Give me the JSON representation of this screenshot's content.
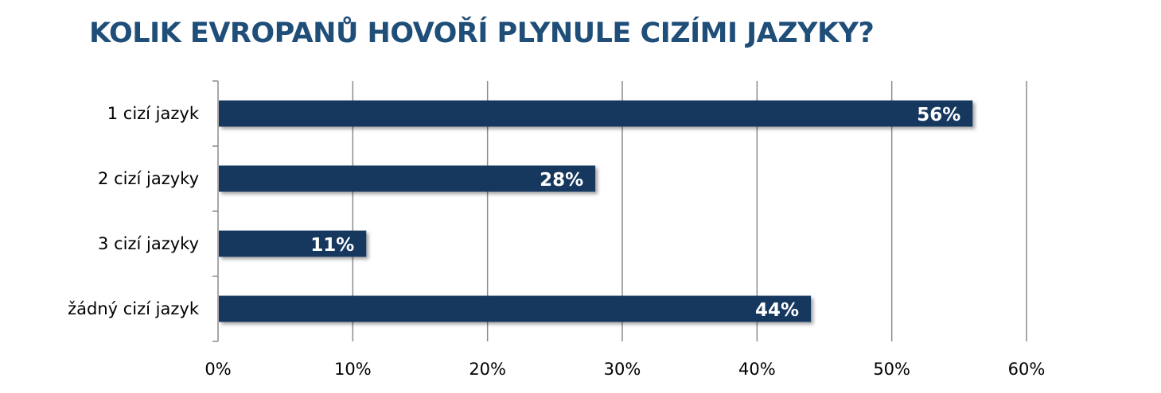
{
  "chart_data": {
    "type": "bar",
    "orientation": "horizontal",
    "title": "KOLIK EVROPANŮ HOVOŘÍ PLYNULE CIZÍMI JAZYKY?",
    "categories": [
      "1 cizí jazyk",
      "2 cizí jazyky",
      "3 cizí jazyky",
      "žádný cizí jazyk"
    ],
    "values": [
      56,
      28,
      11,
      44
    ],
    "data_labels": [
      "56%",
      "28%",
      "11%",
      "44%"
    ],
    "x_ticks": [
      "0%",
      "10%",
      "20%",
      "30%",
      "40%",
      "50%",
      "60%"
    ],
    "xlim": [
      0,
      60
    ],
    "grid": "vertical",
    "legend": "none",
    "colors": {
      "bar": "#17375e",
      "grid": "#8c8c8c",
      "title": "#1f4e79",
      "data_label": "#ffffff"
    }
  }
}
